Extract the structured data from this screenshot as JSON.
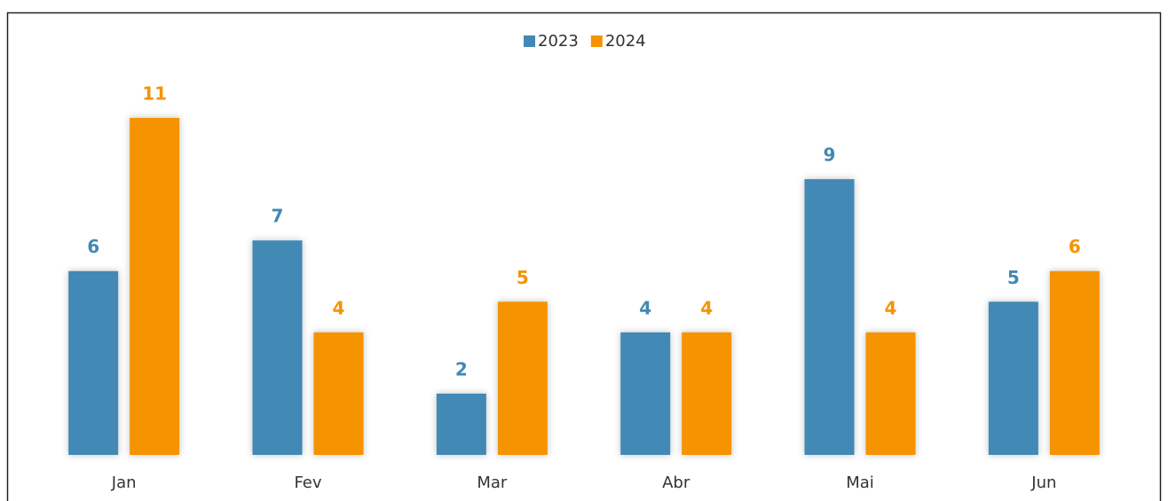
{
  "chart_data": {
    "type": "bar",
    "categories": [
      "Jan",
      "Fev",
      "Mar",
      "Abr",
      "Mai",
      "Jun"
    ],
    "series": [
      {
        "name": "2023",
        "color": "#4289b5",
        "values": [
          6,
          7,
          2,
          4,
          9,
          5
        ]
      },
      {
        "name": "2024",
        "color": "#f59300",
        "values": [
          11,
          4,
          5,
          4,
          4,
          6
        ]
      }
    ]
  }
}
